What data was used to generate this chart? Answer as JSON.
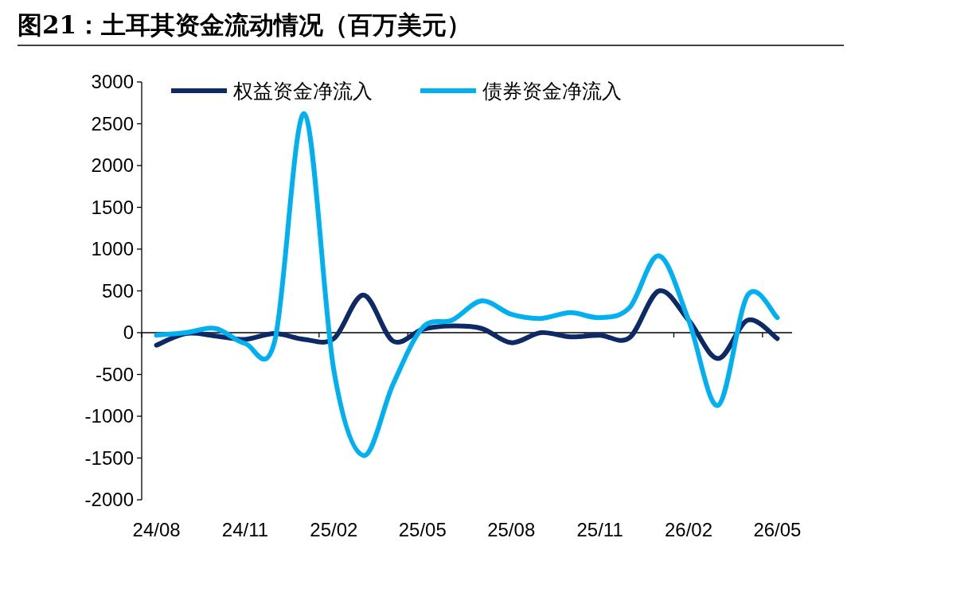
{
  "chart_data": {
    "type": "line",
    "title": "图21：土耳其资金流动情况（百万美元）",
    "categories": [
      "24/08",
      null,
      null,
      "24/11",
      null,
      null,
      "25/02",
      null,
      null,
      "25/05",
      null,
      null,
      "25/08",
      null,
      null,
      "25/11",
      null,
      null,
      "26/02",
      null,
      null,
      "26/05"
    ],
    "series": [
      {
        "name": "权益资金净流入",
        "color": "#0d2a66",
        "values": [
          -150,
          -10,
          -40,
          -80,
          -10,
          -80,
          -70,
          450,
          -100,
          40,
          80,
          50,
          -120,
          0,
          -50,
          -30,
          -60,
          500,
          150,
          -310,
          150,
          -70
        ]
      },
      {
        "name": "债券资金净流入",
        "color": "#00b0f0",
        "values": [
          -30,
          0,
          50,
          -130,
          -100,
          2620,
          -450,
          -1470,
          -620,
          60,
          150,
          380,
          220,
          170,
          240,
          180,
          300,
          920,
          150,
          -870,
          450,
          180
        ]
      }
    ],
    "ylim": [
      -2000,
      3000
    ],
    "yticks": [
      -2000,
      -1500,
      -1000,
      -500,
      0,
      500,
      1000,
      1500,
      2000,
      2500,
      3000
    ],
    "legend": "top"
  }
}
